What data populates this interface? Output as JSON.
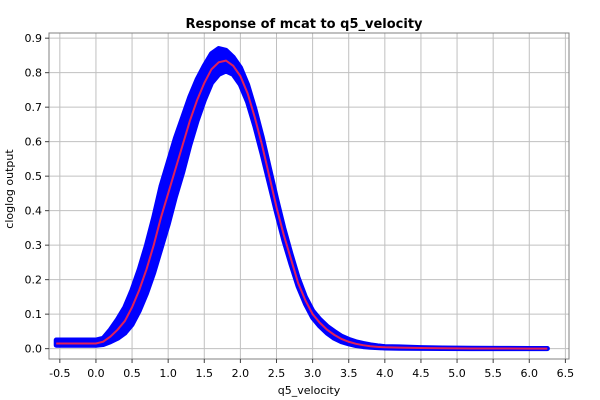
{
  "chart_data": {
    "type": "line",
    "title": "Response of mcat to q5_velocity",
    "xlabel": "q5_velocity",
    "ylabel": "cloglog output",
    "xlim": [
      -0.65,
      6.55
    ],
    "ylim": [
      -0.03,
      0.915
    ],
    "x_ticks": [
      -0.5,
      0.0,
      0.5,
      1.0,
      1.5,
      2.0,
      2.5,
      3.0,
      3.5,
      4.0,
      4.5,
      5.0,
      5.5,
      6.0,
      6.5
    ],
    "x_tick_labels": [
      "-0.5",
      "0.0",
      "0.5",
      "1.0",
      "1.5",
      "2.0",
      "2.5",
      "3.0",
      "3.5",
      "4.0",
      "4.5",
      "5.0",
      "5.5",
      "6.0",
      "6.5"
    ],
    "y_ticks": [
      0.0,
      0.1,
      0.2,
      0.3,
      0.4,
      0.5,
      0.6,
      0.7,
      0.8,
      0.9
    ],
    "y_tick_labels": [
      "0.0",
      "0.1",
      "0.2",
      "0.3",
      "0.4",
      "0.5",
      "0.6",
      "0.7",
      "0.8",
      "0.9"
    ],
    "grid": true,
    "colors": {
      "mean_line": "#e0205a",
      "band": "#0000ff"
    },
    "series": [
      {
        "x": [
          -0.55,
          0.0,
          0.1,
          0.2,
          0.3,
          0.4,
          0.5,
          0.6,
          0.7,
          0.8,
          0.9,
          1.0,
          1.1,
          1.2,
          1.3,
          1.4,
          1.5,
          1.6,
          1.7,
          1.8,
          1.9,
          2.0,
          2.1,
          2.2,
          2.3,
          2.4,
          2.5,
          2.6,
          2.7,
          2.8,
          2.9,
          3.0,
          3.1,
          3.2,
          3.3,
          3.4,
          3.5,
          3.6,
          3.7,
          3.8,
          3.9,
          4.0,
          4.2,
          4.5,
          4.8,
          5.2,
          5.6,
          6.0,
          6.25
        ],
        "y": [
          0.015,
          0.015,
          0.02,
          0.035,
          0.055,
          0.08,
          0.12,
          0.17,
          0.23,
          0.3,
          0.38,
          0.45,
          0.52,
          0.59,
          0.66,
          0.72,
          0.77,
          0.81,
          0.83,
          0.835,
          0.82,
          0.79,
          0.74,
          0.67,
          0.59,
          0.5,
          0.41,
          0.33,
          0.26,
          0.19,
          0.14,
          0.1,
          0.075,
          0.055,
          0.04,
          0.028,
          0.02,
          0.014,
          0.01,
          0.007,
          0.005,
          0.004,
          0.003,
          0.002,
          0.001,
          0.0005,
          0.0003,
          0.0002,
          0.0001
        ]
      },
      {
        "y_lower": [
          0.01,
          0.01,
          0.012,
          0.02,
          0.03,
          0.045,
          0.07,
          0.11,
          0.16,
          0.22,
          0.29,
          0.36,
          0.44,
          0.51,
          0.59,
          0.66,
          0.72,
          0.77,
          0.795,
          0.805,
          0.795,
          0.765,
          0.715,
          0.645,
          0.565,
          0.48,
          0.395,
          0.315,
          0.245,
          0.18,
          0.13,
          0.09,
          0.065,
          0.045,
          0.03,
          0.02,
          0.014,
          0.009,
          0.006,
          0.004,
          0.003,
          0.002,
          0.001,
          0.0008,
          0.0004,
          0.0002,
          0.0001,
          0.0001,
          0.0
        ],
        "y_upper": [
          0.025,
          0.025,
          0.03,
          0.055,
          0.085,
          0.12,
          0.17,
          0.23,
          0.3,
          0.38,
          0.47,
          0.54,
          0.61,
          0.67,
          0.73,
          0.78,
          0.82,
          0.855,
          0.87,
          0.865,
          0.845,
          0.815,
          0.765,
          0.695,
          0.615,
          0.525,
          0.435,
          0.35,
          0.275,
          0.205,
          0.15,
          0.11,
          0.085,
          0.065,
          0.05,
          0.036,
          0.027,
          0.02,
          0.015,
          0.011,
          0.008,
          0.006,
          0.005,
          0.003,
          0.002,
          0.001,
          0.0008,
          0.0005,
          0.0003
        ]
      }
    ]
  }
}
